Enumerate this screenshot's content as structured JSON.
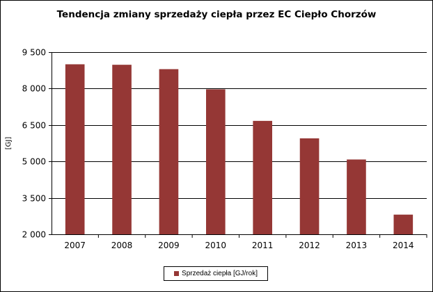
{
  "chart_data": {
    "type": "bar",
    "title": "Tendencja zmiany sprzedaży ciepła przez EC Ciepło Chorzów",
    "xlabel": "",
    "ylabel": "[GJ]",
    "categories": [
      "2007",
      "2008",
      "2009",
      "2010",
      "2011",
      "2012",
      "2013",
      "2014"
    ],
    "series": [
      {
        "name": "Sprzedaż ciepła [GJ/rok]",
        "color": "#953735",
        "values": [
          9000,
          8980,
          8800,
          7970,
          6670,
          5950,
          5080,
          2810
        ]
      }
    ],
    "ylim": [
      2000,
      9500
    ],
    "yticks": [
      2000,
      3500,
      5000,
      6500,
      8000,
      9500
    ],
    "ytick_labels": [
      "2 000",
      "3 500",
      "5 000",
      "6 500",
      "8 000",
      "9 500"
    ],
    "grid": true,
    "legend_position": "bottom"
  }
}
